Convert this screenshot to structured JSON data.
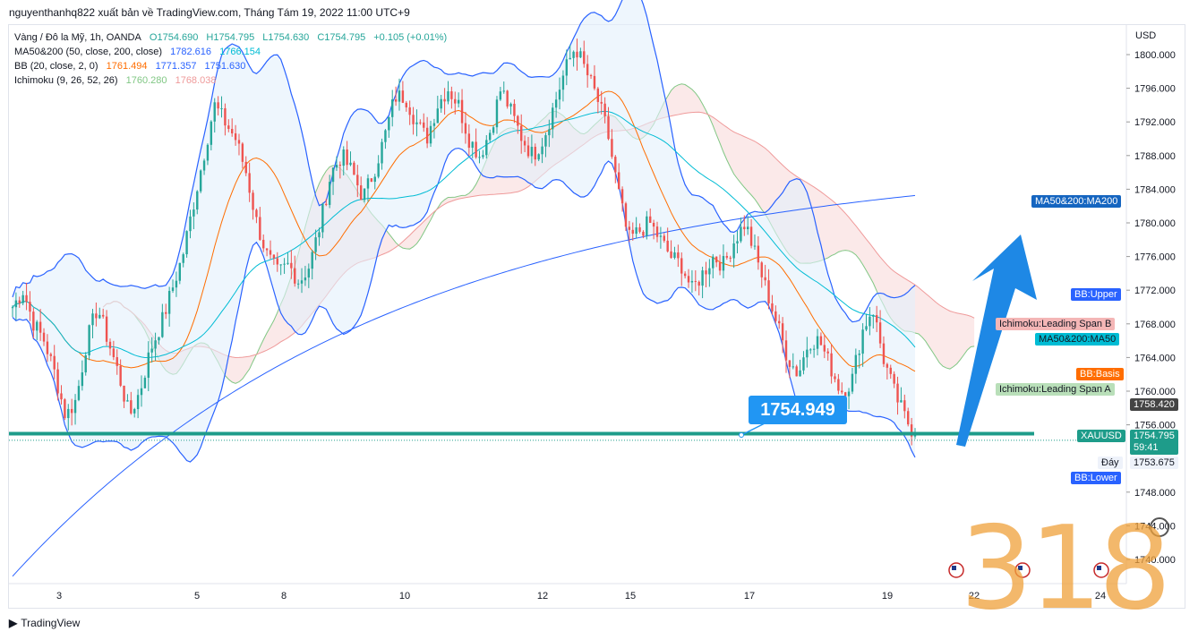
{
  "header": {
    "publisher_line": "nguyenthanhq822 xuất bản về TradingView.com, Tháng Tám 19, 2022 11:00 UTC+9"
  },
  "legend": {
    "symbol_line": "Vàng / Đô la Mỹ, 1h, OANDA",
    "o": "O1754.690",
    "h": "H1754.795",
    "l": "L1754.630",
    "c": "C1754.795",
    "chg": "+0.105 (+0.01%)",
    "ma_label": "MA50&200 (50, close, 200, close)",
    "ma_v1": "1782.616",
    "ma_v2": "1766.154",
    "bb_label": "BB (20, close, 2, 0)",
    "bb_v1": "1761.494",
    "bb_v2": "1771.357",
    "bb_v3": "1751.630",
    "ichi_label": "Ichimoku (9, 26, 52, 26)",
    "ichi_v1": "1760.280",
    "ichi_v2": "1768.038"
  },
  "price_axis": {
    "currency": "USD",
    "ticks": [
      "1800.000",
      "1796.000",
      "1792.000",
      "1788.000",
      "1784.000",
      "1780.000",
      "1776.000",
      "1772.000",
      "1768.000",
      "1764.000",
      "1760.000",
      "1756.000",
      "1748.000",
      "1744.000",
      "1740.000"
    ]
  },
  "time_axis": {
    "ticks": [
      "3",
      "5",
      "8",
      "10",
      "12",
      "15",
      "17",
      "19",
      "22",
      "24"
    ]
  },
  "price_labels": {
    "ma200": "MA50&200:MA200",
    "bb_upper": "BB:Upper",
    "leading_b": "Ichimoku:Leading Span B",
    "ma50": "MA50&200:MA50",
    "bb_basis": "BB:Basis",
    "leading_a": "Ichimoku:Leading Span A",
    "last_hi": "1758.420",
    "xau": "XAUUSD",
    "xau_price": "1754.795",
    "countdown": "59:41",
    "low_label": "Đáy",
    "low_value": "1753.675",
    "bb_lower": "BB:Lower"
  },
  "annotation": {
    "callout": "1754.949"
  },
  "watermark": "318",
  "footer": {
    "brand": "TradingView"
  },
  "colors": {
    "up": "#26a69a",
    "down": "#ef5350",
    "ma200": "#2962ff",
    "ma50": "#00bcd4",
    "bb": "#2962ff",
    "bb_basis": "#ff6d00",
    "span_a": "#81c784",
    "span_b": "#ef9a9a",
    "hline": "#1e9c8a",
    "arrow": "#1e88e5"
  },
  "chart_data": {
    "type": "candlestick",
    "symbol": "XAUUSD",
    "interval": "1h",
    "ylim": [
      1736,
      1802
    ],
    "x_ticks": [
      "3",
      "5",
      "8",
      "10",
      "12",
      "15",
      "17",
      "19",
      "22",
      "24"
    ],
    "close_path": [
      1770,
      1772,
      1768,
      1766,
      1762,
      1757,
      1759,
      1766,
      1770,
      1766,
      1762,
      1757,
      1760,
      1765,
      1768,
      1772,
      1776,
      1782,
      1788,
      1794,
      1792,
      1790,
      1786,
      1780,
      1776,
      1774,
      1775,
      1773,
      1775,
      1780,
      1786,
      1788,
      1786,
      1783,
      1786,
      1790,
      1795,
      1795,
      1792,
      1790,
      1794,
      1796,
      1794,
      1790,
      1788,
      1791,
      1796,
      1793,
      1790,
      1788,
      1790,
      1794,
      1798,
      1801,
      1798,
      1795,
      1791,
      1784,
      1778,
      1779,
      1780,
      1778,
      1776,
      1775,
      1772,
      1774,
      1776,
      1775,
      1778,
      1780,
      1776,
      1772,
      1768,
      1764,
      1762,
      1766,
      1766,
      1763,
      1760,
      1761,
      1767,
      1770,
      1764,
      1760,
      1757,
      1754.8
    ],
    "horizontal_line": 1754.949,
    "last_price": 1754.795
  }
}
